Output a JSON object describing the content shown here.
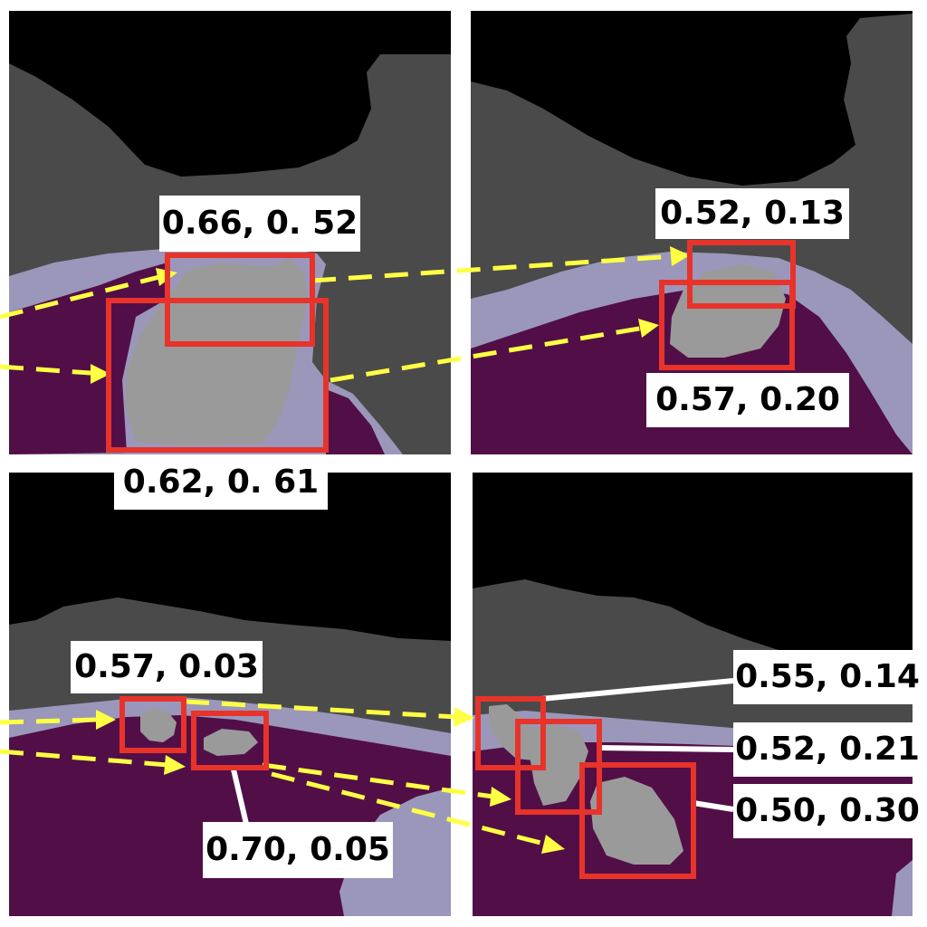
{
  "colors": {
    "background": "#000000",
    "tissue_dark": "#4a4a4a",
    "tissue_light": "#9a97bb",
    "region_purple": "#520f47",
    "region_gray": "#9a9a9a",
    "box": "#e8332a",
    "arrow": "#ffff44",
    "leader_line": "#ffffff"
  },
  "panels": [
    {
      "name": "top-left",
      "labels": [
        "0.66, 0. 52",
        "0.62, 0. 61"
      ]
    },
    {
      "name": "top-right",
      "labels": [
        "0.52, 0.13",
        "0.57, 0.20"
      ]
    },
    {
      "name": "bottom-left",
      "labels": [
        "0.57, 0.03",
        "0.70, 0.05"
      ]
    },
    {
      "name": "bottom-right",
      "labels": [
        "0.55, 0.14",
        "0.52, 0.21",
        "0.50, 0.30"
      ]
    }
  ]
}
